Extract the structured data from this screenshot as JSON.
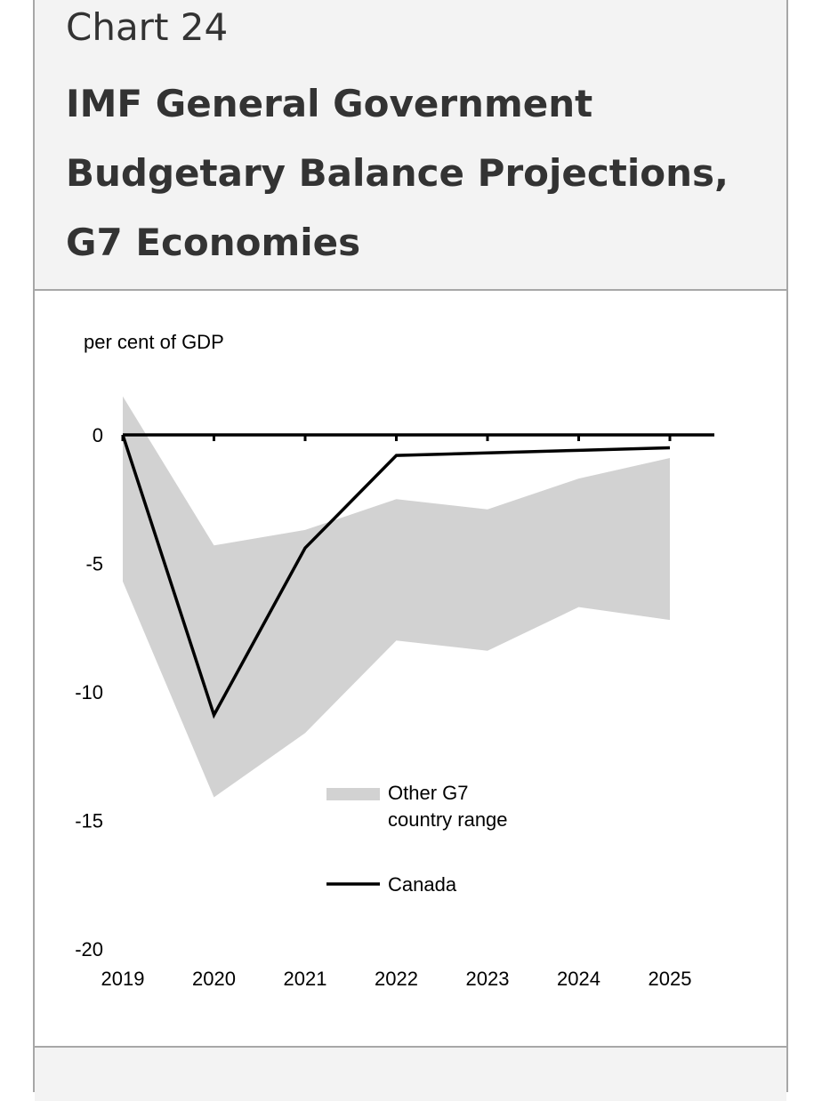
{
  "header": {
    "chart_number": "Chart 24",
    "title": "IMF General Government Budgetary Balance Projections, G7 Economies"
  },
  "chart_data": {
    "type": "area",
    "ylabel": "per cent of GDP",
    "x": [
      "2019",
      "2020",
      "2021",
      "2022",
      "2023",
      "2024",
      "2025"
    ],
    "ylim": [
      -20,
      0
    ],
    "yticks": [
      0,
      -5,
      -10,
      -15,
      -20
    ],
    "ytick_labels": [
      "0",
      "-5",
      "-10",
      "-15",
      "-20"
    ],
    "grid": false,
    "legend_position": "lower-right",
    "series": [
      {
        "name": "Other G7 country range",
        "kind": "range",
        "upper": [
          1.5,
          -4.3,
          -3.7,
          -2.5,
          -2.9,
          -1.7,
          -0.9
        ],
        "lower": [
          -5.7,
          -14.1,
          -11.6,
          -8.0,
          -8.4,
          -6.7,
          -7.2
        ],
        "color": "#d2d2d2"
      },
      {
        "name": "Canada",
        "kind": "line",
        "values": [
          0.0,
          -10.9,
          -4.4,
          -0.8,
          -0.7,
          -0.6,
          -0.5
        ],
        "color": "#000000"
      }
    ]
  }
}
